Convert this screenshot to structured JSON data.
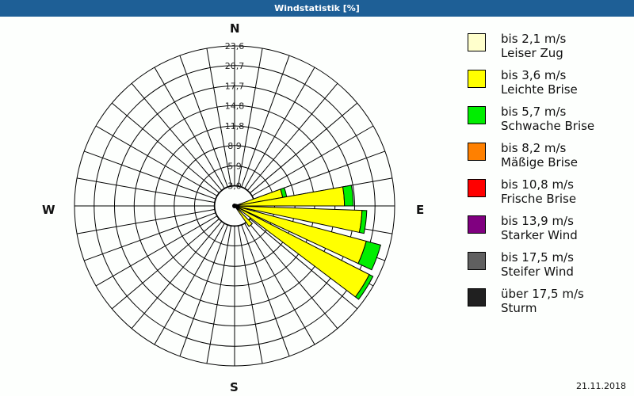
{
  "window": {
    "title": "Windstatistik [%]",
    "date": "21.11.2018"
  },
  "compass": {
    "north": "N",
    "east": "E",
    "south": "S",
    "west": "W"
  },
  "legend": [
    {
      "range": "bis 2,1 m/s",
      "label": "Leiser Zug",
      "color": "#ffffcc"
    },
    {
      "range": "bis 3,6 m/s",
      "label": "Leichte Brise",
      "color": "#ffff00"
    },
    {
      "range": "bis 5,7 m/s",
      "label": "Schwache Brise",
      "color": "#00ee00"
    },
    {
      "range": "bis 8,2 m/s",
      "label": "Mäßige Brise",
      "color": "#ff8000"
    },
    {
      "range": "bis 10,8 m/s",
      "label": "Frische Brise",
      "color": "#ff0000"
    },
    {
      "range": "bis 13,9 m/s",
      "label": "Starker Wind",
      "color": "#800080"
    },
    {
      "range": "bis 17,5 m/s",
      "label": "Steifer Wind",
      "color": "#606060"
    },
    {
      "range": "über 17,5 m/s",
      "label": "Sturm",
      "color": "#202020"
    }
  ],
  "chart_data": {
    "type": "polar-bar (wind rose)",
    "title": "Windstatistik [%]",
    "radial_ticks": [
      3.0,
      5.9,
      8.9,
      11.8,
      14.8,
      17.7,
      20.7,
      23.6
    ],
    "radial_tick_labels": [
      "3,0",
      "5,9",
      "8,9",
      "11,8",
      "14,8",
      "17,7",
      "20,7",
      "23,6"
    ],
    "rmax": 23.6,
    "sector_width_deg": 10,
    "direction_labels": [
      "N",
      "E",
      "S",
      "W"
    ],
    "stacked": true,
    "series_order": [
      "bis 2,1 m/s",
      "bis 3,6 m/s",
      "bis 5,7 m/s"
    ],
    "sectors": [
      {
        "dir_deg": 60,
        "bis 2,1 m/s": 0.0,
        "bis 3,6 m/s": 0.4,
        "bis 5,7 m/s": 0.0
      },
      {
        "dir_deg": 75,
        "bis 2,1 m/s": 0.0,
        "bis 3,6 m/s": 7.2,
        "bis 5,7 m/s": 0.6
      },
      {
        "dir_deg": 85,
        "bis 2,1 m/s": 0.0,
        "bis 3,6 m/s": 16.2,
        "bis 5,7 m/s": 1.3
      },
      {
        "dir_deg": 97,
        "bis 2,1 m/s": 0.0,
        "bis 3,6 m/s": 18.8,
        "bis 5,7 m/s": 0.7
      },
      {
        "dir_deg": 110,
        "bis 2,1 m/s": 0.0,
        "bis 3,6 m/s": 20.1,
        "bis 5,7 m/s": 2.2
      },
      {
        "dir_deg": 122,
        "bis 2,1 m/s": 0.0,
        "bis 3,6 m/s": 22.3,
        "bis 5,7 m/s": 0.6
      },
      {
        "dir_deg": 140,
        "bis 2,1 m/s": 0.0,
        "bis 3,6 m/s": 3.7,
        "bis 5,7 m/s": 0.0
      }
    ],
    "legend_position": "right",
    "grid": true
  }
}
